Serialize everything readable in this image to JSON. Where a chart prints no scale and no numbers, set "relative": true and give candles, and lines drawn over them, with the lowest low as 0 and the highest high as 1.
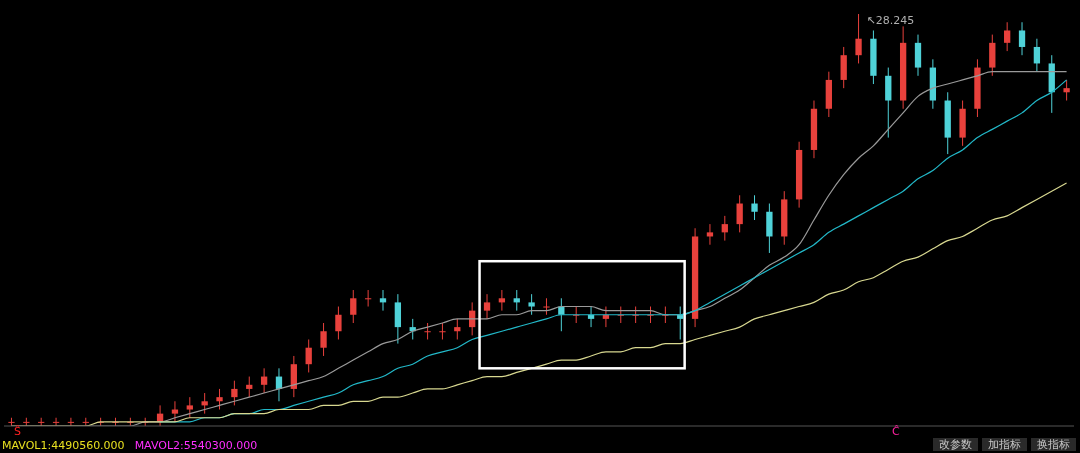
{
  "chart_data": {
    "type": "candlestick",
    "relative": true,
    "categories": [
      null,
      null,
      null,
      null,
      null,
      null,
      null,
      null,
      null,
      null,
      null,
      null,
      null,
      null,
      null,
      null,
      null,
      null,
      null,
      null,
      null,
      null,
      null,
      null,
      null,
      null,
      null,
      null,
      null,
      null,
      null,
      null,
      null,
      null,
      null,
      null,
      null,
      null,
      null,
      null,
      null,
      null,
      null,
      null,
      null,
      null,
      null,
      null,
      null,
      null,
      null,
      null,
      null,
      null,
      null,
      null,
      null,
      null,
      null,
      null,
      null,
      null,
      null,
      null,
      null,
      null,
      null,
      null,
      null,
      null,
      null,
      null
    ],
    "ohlc": [
      [
        0.01,
        0.02,
        0.0,
        0.01
      ],
      [
        0.01,
        0.02,
        0.0,
        0.01
      ],
      [
        0.01,
        0.02,
        0.0,
        0.01
      ],
      [
        0.01,
        0.02,
        0.0,
        0.01
      ],
      [
        0.01,
        0.02,
        0.0,
        0.01
      ],
      [
        0.01,
        0.02,
        0.0,
        0.01
      ],
      [
        0.01,
        0.02,
        0.0,
        0.01
      ],
      [
        0.01,
        0.02,
        0.0,
        0.01
      ],
      [
        0.01,
        0.02,
        0.0,
        0.01
      ],
      [
        0.01,
        0.02,
        0.0,
        0.01
      ],
      [
        0.01,
        0.05,
        0.0,
        0.03
      ],
      [
        0.03,
        0.06,
        0.01,
        0.04
      ],
      [
        0.04,
        0.07,
        0.02,
        0.05
      ],
      [
        0.05,
        0.08,
        0.03,
        0.06
      ],
      [
        0.06,
        0.09,
        0.04,
        0.07
      ],
      [
        0.07,
        0.11,
        0.05,
        0.09
      ],
      [
        0.09,
        0.12,
        0.07,
        0.1
      ],
      [
        0.1,
        0.14,
        0.08,
        0.12
      ],
      [
        0.12,
        0.14,
        0.06,
        0.09
      ],
      [
        0.09,
        0.17,
        0.07,
        0.15
      ],
      [
        0.15,
        0.21,
        0.13,
        0.19
      ],
      [
        0.19,
        0.25,
        0.17,
        0.23
      ],
      [
        0.23,
        0.29,
        0.21,
        0.27
      ],
      [
        0.27,
        0.33,
        0.25,
        0.31
      ],
      [
        0.31,
        0.33,
        0.29,
        0.31
      ],
      [
        0.31,
        0.33,
        0.28,
        0.3
      ],
      [
        0.3,
        0.32,
        0.2,
        0.24
      ],
      [
        0.24,
        0.26,
        0.21,
        0.23
      ],
      [
        0.23,
        0.25,
        0.21,
        0.23
      ],
      [
        0.23,
        0.25,
        0.21,
        0.23
      ],
      [
        0.23,
        0.26,
        0.21,
        0.24
      ],
      [
        0.24,
        0.3,
        0.22,
        0.28
      ],
      [
        0.28,
        0.32,
        0.26,
        0.3
      ],
      [
        0.3,
        0.33,
        0.28,
        0.31
      ],
      [
        0.31,
        0.33,
        0.28,
        0.3
      ],
      [
        0.3,
        0.32,
        0.27,
        0.29
      ],
      [
        0.29,
        0.31,
        0.27,
        0.29
      ],
      [
        0.29,
        0.31,
        0.23,
        0.27
      ],
      [
        0.27,
        0.29,
        0.25,
        0.27
      ],
      [
        0.27,
        0.29,
        0.24,
        0.26
      ],
      [
        0.26,
        0.29,
        0.24,
        0.27
      ],
      [
        0.27,
        0.29,
        0.25,
        0.27
      ],
      [
        0.27,
        0.29,
        0.25,
        0.27
      ],
      [
        0.27,
        0.29,
        0.25,
        0.27
      ],
      [
        0.27,
        0.29,
        0.25,
        0.27
      ],
      [
        0.27,
        0.29,
        0.21,
        0.26
      ],
      [
        0.26,
        0.48,
        0.24,
        0.46
      ],
      [
        0.46,
        0.49,
        0.44,
        0.47
      ],
      [
        0.47,
        0.51,
        0.45,
        0.49
      ],
      [
        0.49,
        0.56,
        0.47,
        0.54
      ],
      [
        0.54,
        0.56,
        0.5,
        0.52
      ],
      [
        0.52,
        0.54,
        0.42,
        0.46
      ],
      [
        0.46,
        0.57,
        0.44,
        0.55
      ],
      [
        0.55,
        0.69,
        0.53,
        0.67
      ],
      [
        0.67,
        0.79,
        0.65,
        0.77
      ],
      [
        0.77,
        0.86,
        0.75,
        0.84
      ],
      [
        0.84,
        0.92,
        0.82,
        0.9
      ],
      [
        0.9,
        1.0,
        0.88,
        0.94
      ],
      [
        0.94,
        0.96,
        0.83,
        0.85
      ],
      [
        0.85,
        0.87,
        0.7,
        0.79
      ],
      [
        0.79,
        0.97,
        0.77,
        0.93
      ],
      [
        0.93,
        0.95,
        0.85,
        0.87
      ],
      [
        0.87,
        0.89,
        0.77,
        0.79
      ],
      [
        0.79,
        0.81,
        0.66,
        0.7
      ],
      [
        0.7,
        0.79,
        0.68,
        0.77
      ],
      [
        0.77,
        0.89,
        0.75,
        0.87
      ],
      [
        0.87,
        0.95,
        0.85,
        0.93
      ],
      [
        0.93,
        0.98,
        0.91,
        0.96
      ],
      [
        0.96,
        0.98,
        0.9,
        0.92
      ],
      [
        0.92,
        0.94,
        0.86,
        0.88
      ],
      [
        0.88,
        0.9,
        0.76,
        0.81
      ],
      [
        0.81,
        0.84,
        0.79,
        0.82
      ]
    ],
    "colors": [
      "#e8413c",
      "#e8413c",
      "#e8413c",
      "#e8413c",
      "#e8413c",
      "#e8413c",
      "#e8413c",
      "#e8413c",
      "#e8413c",
      "#e8413c",
      "#e8413c",
      "#e8413c",
      "#e8413c",
      "#e8413c",
      "#e8413c",
      "#e8413c",
      "#e8413c",
      "#e8413c",
      "#4fd2d8",
      "#e8413c",
      "#e8413c",
      "#e8413c",
      "#e8413c",
      "#e8413c",
      "#e8413c",
      "#4fd2d8",
      "#4fd2d8",
      "#4fd2d8",
      "#e8413c",
      "#e8413c",
      "#e8413c",
      "#e8413c",
      "#e8413c",
      "#e8413c",
      "#4fd2d8",
      "#4fd2d8",
      "#e8413c",
      "#4fd2d8",
      "#e8413c",
      "#4fd2d8",
      "#e8413c",
      "#e8413c",
      "#e8413c",
      "#e8413c",
      "#e8413c",
      "#4fd2d8",
      "#e8413c",
      "#e8413c",
      "#e8413c",
      "#e8413c",
      "#4fd2d8",
      "#4fd2d8",
      "#e8413c",
      "#e8413c",
      "#e8413c",
      "#e8413c",
      "#e8413c",
      "#e8413c",
      "#4fd2d8",
      "#4fd2d8",
      "#e8413c",
      "#4fd2d8",
      "#4fd2d8",
      "#4fd2d8",
      "#e8413c",
      "#e8413c",
      "#e8413c",
      "#e8413c",
      "#4fd2d8",
      "#4fd2d8",
      "#4fd2d8",
      "#e8413c"
    ],
    "series": [
      {
        "type": "line",
        "color": "#9a9a9a",
        "values": [
          0.0,
          0.0,
          0.0,
          0.0,
          0.0,
          0.0,
          0.0,
          0.0,
          0.0,
          0.01,
          0.01,
          0.02,
          0.03,
          0.04,
          0.05,
          0.06,
          0.07,
          0.08,
          0.09,
          0.1,
          0.11,
          0.12,
          0.14,
          0.16,
          0.18,
          0.2,
          0.21,
          0.23,
          0.24,
          0.25,
          0.26,
          0.26,
          0.26,
          0.27,
          0.27,
          0.28,
          0.28,
          0.29,
          0.29,
          0.29,
          0.28,
          0.28,
          0.28,
          0.28,
          0.27,
          0.27,
          0.28,
          0.29,
          0.31,
          0.33,
          0.36,
          0.39,
          0.41,
          0.44,
          0.5,
          0.56,
          0.61,
          0.65,
          0.68,
          0.72,
          0.76,
          0.8,
          0.82,
          0.83,
          0.84,
          0.85,
          0.86,
          0.86,
          0.86,
          0.86,
          0.86,
          0.86
        ]
      },
      {
        "type": "line",
        "color": "#22b8c8",
        "values": [
          null,
          null,
          null,
          null,
          null,
          null,
          null,
          null,
          null,
          null,
          0.01,
          0.01,
          0.01,
          0.02,
          0.02,
          0.03,
          0.03,
          0.04,
          0.04,
          0.05,
          0.06,
          0.07,
          0.08,
          0.1,
          0.11,
          0.12,
          0.14,
          0.15,
          0.17,
          0.18,
          0.19,
          0.21,
          0.22,
          0.23,
          0.24,
          0.25,
          0.26,
          0.27,
          0.27,
          0.27,
          0.27,
          0.27,
          0.27,
          0.27,
          0.27,
          0.27,
          0.28,
          0.3,
          0.32,
          0.34,
          0.36,
          0.38,
          0.4,
          0.42,
          0.44,
          0.47,
          0.49,
          0.51,
          0.53,
          0.55,
          0.57,
          0.6,
          0.62,
          0.65,
          0.67,
          0.7,
          0.72,
          0.74,
          0.76,
          0.79,
          0.81,
          0.84
        ]
      },
      {
        "type": "line",
        "color": "#d8d890",
        "values": [
          0.0,
          0.0,
          0.0,
          0.0,
          0.0,
          0.0,
          0.01,
          0.01,
          0.01,
          0.01,
          0.01,
          0.01,
          0.02,
          0.02,
          0.02,
          0.03,
          0.03,
          0.03,
          0.04,
          0.04,
          0.04,
          0.05,
          0.05,
          0.06,
          0.06,
          0.07,
          0.07,
          0.08,
          0.09,
          0.09,
          0.1,
          0.11,
          0.12,
          0.12,
          0.13,
          0.14,
          0.15,
          0.16,
          0.16,
          0.17,
          0.18,
          0.18,
          0.19,
          0.19,
          0.2,
          0.2,
          0.21,
          0.22,
          0.23,
          0.24,
          0.26,
          0.27,
          0.28,
          0.29,
          0.3,
          0.32,
          0.33,
          0.35,
          0.36,
          0.38,
          0.4,
          0.41,
          0.43,
          0.45,
          0.46,
          0.48,
          0.5,
          0.51,
          0.53,
          0.55,
          0.57,
          0.59
        ]
      }
    ],
    "annotations": [
      "↖28.245",
      "Ŝ",
      "Ĉ",
      "MAVOL1:4490560.000",
      "MAVOL2:5540300.000",
      "改参数",
      "加指标",
      "换指标"
    ]
  }
}
